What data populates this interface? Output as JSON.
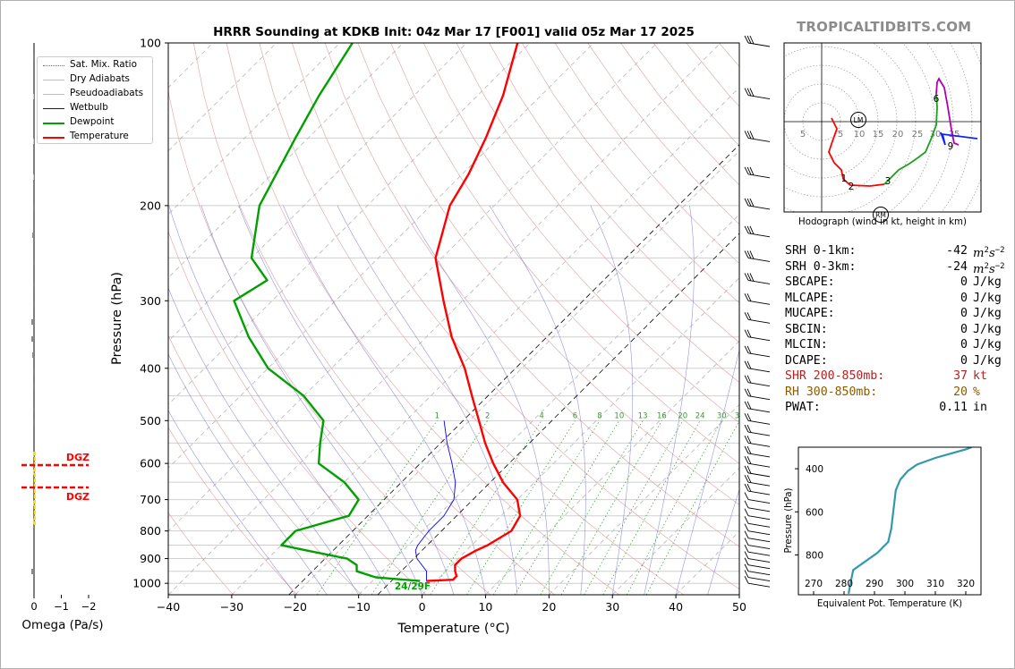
{
  "title": "HRRR Sounding at KDKB Init: 04z Mar 17 [F001] valid 05z Mar 17 2025",
  "brand": "TROPICALTIDBITS.COM",
  "skewt": {
    "xlabel": "Temperature (°C)",
    "ylabel": "Pressure (hPa)",
    "xlim": [
      -40,
      50
    ],
    "ylim": [
      1050,
      100
    ],
    "xticks": [
      -40,
      -30,
      -20,
      -10,
      0,
      10,
      20,
      30,
      40,
      50
    ],
    "yticks": [
      100,
      200,
      300,
      400,
      500,
      600,
      700,
      800,
      900,
      1000
    ],
    "mixing_ratio_labels": [
      "1",
      "2",
      "4",
      "6",
      "8",
      "10",
      "13",
      "16",
      "20",
      "24",
      "30",
      "36"
    ],
    "surface_label": "24/29F",
    "colors": {
      "temperature": "#ff0000",
      "dewpoint": "#00a000",
      "wetbulb": "#0000ff",
      "parcel": "#000000"
    }
  },
  "legend": [
    {
      "label": "Sat. Mix. Ratio",
      "style": "dotted-green"
    },
    {
      "label": "Dry Adiabats",
      "style": "thin-tan"
    },
    {
      "label": "Pseudoadiabats",
      "style": "thin-gray"
    },
    {
      "label": "Wetbulb",
      "style": "blue"
    },
    {
      "label": "Dewpoint",
      "style": "green"
    },
    {
      "label": "Temperature",
      "style": "red"
    }
  ],
  "chart_data": [
    {
      "type": "line",
      "title": "HRRR Sounding at KDKB Init: 04z Mar 17 [F001] valid 05z Mar 17 2025",
      "xlabel": "Temperature (°C)",
      "ylabel": "Pressure (hPa)",
      "y_scale": "log",
      "skew": "45deg",
      "series": [
        {
          "name": "Temperature",
          "points": [
            [
              990,
              -1.5
            ],
            [
              985,
              2.5
            ],
            [
              970,
              2.5
            ],
            [
              950,
              1.5
            ],
            [
              925,
              0.5
            ],
            [
              900,
              0.5
            ],
            [
              870,
              1.5
            ],
            [
              850,
              2.5
            ],
            [
              800,
              4
            ],
            [
              750,
              3
            ],
            [
              700,
              0
            ],
            [
              650,
              -5
            ],
            [
              600,
              -9.5
            ],
            [
              550,
              -14
            ],
            [
              500,
              -18.5
            ],
            [
              450,
              -23.5
            ],
            [
              400,
              -29
            ],
            [
              350,
              -36
            ],
            [
              300,
              -43
            ],
            [
              250,
              -51
            ],
            [
              200,
              -57
            ],
            [
              175,
              -59
            ],
            [
              150,
              -62
            ],
            [
              125,
              -66
            ],
            [
              100,
              -72
            ]
          ]
        },
        {
          "name": "Dewpoint",
          "points": [
            [
              990,
              -2.5
            ],
            [
              975,
              -10
            ],
            [
              950,
              -14
            ],
            [
              925,
              -15
            ],
            [
              900,
              -17.5
            ],
            [
              870,
              -25
            ],
            [
              850,
              -30
            ],
            [
              800,
              -30
            ],
            [
              750,
              -24
            ],
            [
              700,
              -25
            ],
            [
              650,
              -30
            ],
            [
              600,
              -37
            ],
            [
              550,
              -40
            ],
            [
              500,
              -43
            ],
            [
              450,
              -50
            ],
            [
              400,
              -60
            ],
            [
              350,
              -68
            ],
            [
              300,
              -76
            ],
            [
              275,
              -74
            ],
            [
              250,
              -80
            ],
            [
              200,
              -87
            ],
            [
              150,
              -92
            ],
            [
              125,
              -95
            ],
            [
              100,
              -98
            ]
          ]
        },
        {
          "name": "Wetbulb",
          "points": [
            [
              990,
              -1.5
            ],
            [
              950,
              -3
            ],
            [
              900,
              -6.5
            ],
            [
              870,
              -8
            ],
            [
              850,
              -8.5
            ],
            [
              800,
              -9
            ],
            [
              750,
              -9
            ],
            [
              700,
              -10
            ],
            [
              650,
              -12.5
            ],
            [
              600,
              -16
            ],
            [
              550,
              -20
            ],
            [
              500,
              -24
            ]
          ]
        }
      ]
    },
    {
      "type": "line",
      "title": "Hodograph (wind in kt, height in km)",
      "ring_labels": [
        "5",
        "10",
        "15",
        "20",
        "25",
        "30",
        "35"
      ],
      "height_labels": [
        "1",
        "2",
        "3",
        "6",
        "9"
      ],
      "markers": [
        "LM",
        "RM"
      ]
    },
    {
      "type": "line",
      "xlabel": "Equivalent Pot. Temperature (K)",
      "ylabel": "Pressure (hPa)",
      "xlim": [
        265,
        325
      ],
      "ylim": [
        985,
        300
      ],
      "xticks": [
        270,
        280,
        290,
        300,
        310,
        320
      ],
      "yticks": [
        400,
        600,
        800
      ],
      "series": [
        {
          "name": "",
          "x": [
            281.5,
            282,
            283,
            287,
            291,
            294.5,
            295.5,
            296,
            296.5,
            297,
            298.5,
            301,
            304,
            310,
            315,
            320,
            322
          ],
          "y": [
            980,
            940,
            870,
            830,
            790,
            740,
            680,
            620,
            560,
            500,
            450,
            410,
            380,
            350,
            330,
            310,
            300
          ]
        }
      ]
    },
    {
      "type": "bar",
      "xlabel": "Omega (Pa/s)",
      "xticks": [
        "0",
        "−1",
        "−2"
      ],
      "dgz_label": "DGZ"
    }
  ],
  "indices": [
    {
      "label": "SRH 0-1km:",
      "value": "-42",
      "unit": "m2s-2",
      "color": "#000000"
    },
    {
      "label": "SRH 0-3km:",
      "value": "-24",
      "unit": "m2s-2",
      "color": "#000000"
    },
    {
      "label": "SBCAPE:",
      "value": "0",
      "unit": "J/kg",
      "color": "#000000"
    },
    {
      "label": "MLCAPE:",
      "value": "0",
      "unit": "J/kg",
      "color": "#000000"
    },
    {
      "label": "MUCAPE:",
      "value": "0",
      "unit": "J/kg",
      "color": "#000000"
    },
    {
      "label": "SBCIN:",
      "value": "0",
      "unit": "J/kg",
      "color": "#000000"
    },
    {
      "label": "MLCIN:",
      "value": "0",
      "unit": "J/kg",
      "color": "#000000"
    },
    {
      "label": "DCAPE:",
      "value": "0",
      "unit": "J/kg",
      "color": "#000000"
    },
    {
      "label": "SHR 200-850mb:",
      "value": "37",
      "unit": "kt",
      "color": "#b22222"
    },
    {
      "label": "RH 300-850mb:",
      "value": "20",
      "unit": "%",
      "color": "#8b5a00"
    },
    {
      "label": "PWAT:",
      "value": "0.11",
      "unit": "in",
      "color": "#000000"
    }
  ]
}
